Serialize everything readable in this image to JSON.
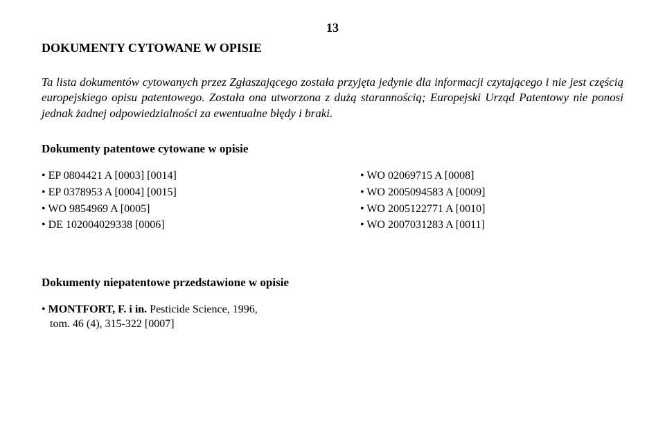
{
  "page_number": "13",
  "heading": "DOKUMENTY CYTOWANE W OPISIE",
  "intro": "Ta lista dokumentów cytowanych przez Zgłaszającego została przyjęta jedynie dla informacji czytającego i nie jest częścią europejskiego opisu patentowego. Została ona utworzona z dużą starannością; Europejski Urząd Patentowy nie ponosi jednak żadnej odpowiedzialności za ewentualne błędy i braki.",
  "patent_section_heading": "Dokumenty patentowe cytowane w opisie",
  "patent_left": [
    "EP 0804421 A [0003] [0014]",
    "EP 0378953 A [0004] [0015]",
    "WO 9854969 A [0005]",
    "DE 102004029338 [0006]"
  ],
  "patent_right": [
    "WO 02069715 A [0008]",
    "WO 2005094583 A [0009]",
    "WO 2005122771 A [0010]",
    "WO 2007031283 A [0011]"
  ],
  "nonpatent_section_heading": "Dokumenty niepatentowe przedstawione w opisie",
  "nonpatent_ref_bold": "MONTFORT, F. i in.",
  "nonpatent_ref_rest": " Pesticide Science, 1996,",
  "nonpatent_ref_line2": "tom. 46 (4), 315-322 [0007]"
}
